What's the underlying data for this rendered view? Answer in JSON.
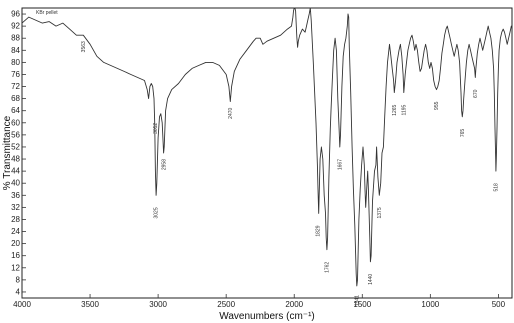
{
  "chart_data": {
    "type": "line",
    "title": "",
    "xlabel": "Wavenumbers (cm⁻¹)",
    "ylabel": "% Transmittance",
    "xlim": [
      4000,
      400
    ],
    "ylim": [
      2,
      98
    ],
    "x_ticks": [
      {
        "value": 4000,
        "label": "4000"
      },
      {
        "value": 3500,
        "label": "3500"
      },
      {
        "value": 3000,
        "label": "3000"
      },
      {
        "value": 2500,
        "label": "2500"
      },
      {
        "value": 2000,
        "label": "2000"
      },
      {
        "value": 1500,
        "label": "1500"
      },
      {
        "value": 1000,
        "label": "1000"
      },
      {
        "value": 500,
        "label": "500"
      }
    ],
    "y_ticks": [
      {
        "value": 96,
        "label": "96"
      },
      {
        "value": 92,
        "label": "92"
      },
      {
        "value": 88,
        "label": "88"
      },
      {
        "value": 84,
        "label": "84"
      },
      {
        "value": 80,
        "label": "80"
      },
      {
        "value": 76,
        "label": "76"
      },
      {
        "value": 72,
        "label": "72"
      },
      {
        "value": 68,
        "label": "68"
      },
      {
        "value": 64,
        "label": "64"
      },
      {
        "value": 60,
        "label": "60"
      },
      {
        "value": 56,
        "label": "56"
      },
      {
        "value": 52,
        "label": "52"
      },
      {
        "value": 48,
        "label": "48"
      },
      {
        "value": 44,
        "label": "44"
      },
      {
        "value": 40,
        "label": "40"
      },
      {
        "value": 36,
        "label": "36"
      },
      {
        "value": 32,
        "label": "32"
      },
      {
        "value": 28,
        "label": "28"
      },
      {
        "value": 24,
        "label": "24"
      },
      {
        "value": 20,
        "label": "20"
      },
      {
        "value": 16,
        "label": "16"
      },
      {
        "value": 12,
        "label": "12"
      },
      {
        "value": 8,
        "label": "8"
      },
      {
        "value": 4,
        "label": "4"
      }
    ],
    "legend": {
      "text": "KBr pellet",
      "placement": "top-left"
    },
    "series": [
      {
        "points": [
          [
            4000,
            93
          ],
          [
            3950,
            95
          ],
          [
            3900,
            94
          ],
          [
            3850,
            93
          ],
          [
            3800,
            93.5
          ],
          [
            3750,
            92
          ],
          [
            3700,
            93
          ],
          [
            3650,
            91
          ],
          [
            3600,
            89
          ],
          [
            3550,
            89
          ],
          [
            3500,
            86
          ],
          [
            3450,
            82
          ],
          [
            3400,
            80
          ],
          [
            3350,
            79
          ],
          [
            3300,
            78
          ],
          [
            3250,
            77
          ],
          [
            3200,
            76
          ],
          [
            3150,
            75
          ],
          [
            3100,
            74
          ],
          [
            3080,
            71
          ],
          [
            3070,
            68
          ],
          [
            3060,
            72
          ],
          [
            3050,
            73
          ],
          [
            3040,
            72
          ],
          [
            3030,
            68
          ],
          [
            3025,
            60
          ],
          [
            3020,
            44
          ],
          [
            3015,
            36
          ],
          [
            3010,
            40
          ],
          [
            3000,
            55
          ],
          [
            2990,
            62
          ],
          [
            2980,
            63
          ],
          [
            2970,
            60
          ],
          [
            2960,
            50
          ],
          [
            2955,
            52
          ],
          [
            2945,
            64
          ],
          [
            2930,
            68
          ],
          [
            2900,
            71
          ],
          [
            2850,
            73
          ],
          [
            2800,
            76
          ],
          [
            2750,
            78
          ],
          [
            2700,
            79
          ],
          [
            2650,
            80
          ],
          [
            2600,
            80
          ],
          [
            2550,
            79
          ],
          [
            2500,
            76
          ],
          [
            2480,
            72
          ],
          [
            2470,
            67
          ],
          [
            2460,
            72
          ],
          [
            2440,
            77
          ],
          [
            2400,
            81
          ],
          [
            2350,
            84
          ],
          [
            2300,
            87
          ],
          [
            2280,
            88
          ],
          [
            2250,
            88
          ],
          [
            2230,
            86
          ],
          [
            2200,
            87
          ],
          [
            2150,
            88
          ],
          [
            2100,
            89
          ],
          [
            2050,
            91
          ],
          [
            2020,
            92
          ],
          [
            2010,
            95
          ],
          [
            2005,
            97
          ],
          [
            2000,
            98
          ],
          [
            1995,
            98
          ],
          [
            1990,
            97
          ],
          [
            1985,
            92
          ],
          [
            1980,
            88
          ],
          [
            1975,
            85
          ],
          [
            1970,
            87
          ],
          [
            1960,
            89
          ],
          [
            1950,
            90
          ],
          [
            1940,
            91
          ],
          [
            1920,
            90
          ],
          [
            1910,
            92
          ],
          [
            1900,
            94
          ],
          [
            1890,
            96
          ],
          [
            1882,
            98
          ],
          [
            1875,
            94
          ],
          [
            1860,
            80
          ],
          [
            1840,
            60
          ],
          [
            1830,
            46
          ],
          [
            1825,
            38
          ],
          [
            1820,
            30
          ],
          [
            1810,
            48
          ],
          [
            1800,
            52
          ],
          [
            1790,
            48
          ],
          [
            1780,
            36
          ],
          [
            1770,
            30
          ],
          [
            1765,
            22
          ],
          [
            1760,
            18
          ],
          [
            1755,
            22
          ],
          [
            1745,
            42
          ],
          [
            1735,
            58
          ],
          [
            1730,
            64
          ],
          [
            1720,
            74
          ],
          [
            1710,
            84
          ],
          [
            1700,
            88
          ],
          [
            1690,
            84
          ],
          [
            1680,
            68
          ],
          [
            1670,
            58
          ],
          [
            1665,
            52
          ],
          [
            1660,
            56
          ],
          [
            1650,
            72
          ],
          [
            1640,
            82
          ],
          [
            1630,
            86
          ],
          [
            1620,
            88
          ],
          [
            1610,
            92
          ],
          [
            1605,
            96
          ],
          [
            1600,
            95
          ],
          [
            1595,
            85
          ],
          [
            1585,
            70
          ],
          [
            1575,
            52
          ],
          [
            1565,
            38
          ],
          [
            1555,
            26
          ],
          [
            1550,
            18
          ],
          [
            1545,
            10
          ],
          [
            1540,
            6
          ],
          [
            1535,
            8
          ],
          [
            1530,
            18
          ],
          [
            1525,
            28
          ],
          [
            1515,
            38
          ],
          [
            1505,
            46
          ],
          [
            1495,
            52
          ],
          [
            1485,
            46
          ],
          [
            1480,
            38
          ],
          [
            1475,
            32
          ],
          [
            1465,
            40
          ],
          [
            1460,
            44
          ],
          [
            1455,
            38
          ],
          [
            1450,
            30
          ],
          [
            1445,
            22
          ],
          [
            1440,
            14
          ],
          [
            1435,
            16
          ],
          [
            1425,
            34
          ],
          [
            1410,
            44
          ],
          [
            1400,
            46
          ],
          [
            1395,
            52
          ],
          [
            1385,
            42
          ],
          [
            1375,
            36
          ],
          [
            1365,
            40
          ],
          [
            1355,
            50
          ],
          [
            1345,
            52
          ],
          [
            1335,
            62
          ],
          [
            1325,
            72
          ],
          [
            1315,
            80
          ],
          [
            1300,
            86
          ],
          [
            1290,
            82
          ],
          [
            1280,
            78
          ],
          [
            1270,
            74
          ],
          [
            1265,
            70
          ],
          [
            1255,
            74
          ],
          [
            1245,
            80
          ],
          [
            1230,
            84
          ],
          [
            1220,
            86
          ],
          [
            1210,
            82
          ],
          [
            1200,
            76
          ],
          [
            1195,
            70
          ],
          [
            1185,
            76
          ],
          [
            1175,
            80
          ],
          [
            1165,
            84
          ],
          [
            1155,
            86
          ],
          [
            1145,
            88
          ],
          [
            1135,
            89
          ],
          [
            1125,
            87
          ],
          [
            1115,
            84
          ],
          [
            1105,
            86
          ],
          [
            1095,
            84
          ],
          [
            1085,
            80
          ],
          [
            1075,
            77
          ],
          [
            1065,
            78
          ],
          [
            1055,
            81
          ],
          [
            1045,
            84
          ],
          [
            1035,
            86
          ],
          [
            1025,
            84
          ],
          [
            1015,
            80
          ],
          [
            1005,
            78
          ],
          [
            995,
            80
          ],
          [
            985,
            78
          ],
          [
            975,
            74
          ],
          [
            965,
            72
          ],
          [
            955,
            71
          ],
          [
            945,
            72
          ],
          [
            935,
            74
          ],
          [
            925,
            78
          ],
          [
            915,
            83
          ],
          [
            905,
            86
          ],
          [
            895,
            89
          ],
          [
            885,
            91
          ],
          [
            875,
            92
          ],
          [
            865,
            90
          ],
          [
            855,
            88
          ],
          [
            845,
            86
          ],
          [
            835,
            84
          ],
          [
            825,
            82
          ],
          [
            815,
            84
          ],
          [
            805,
            86
          ],
          [
            795,
            84
          ],
          [
            785,
            80
          ],
          [
            775,
            70
          ],
          [
            770,
            64
          ],
          [
            765,
            62
          ],
          [
            760,
            64
          ],
          [
            755,
            68
          ],
          [
            745,
            74
          ],
          [
            735,
            80
          ],
          [
            725,
            84
          ],
          [
            715,
            86
          ],
          [
            705,
            84
          ],
          [
            695,
            82
          ],
          [
            685,
            80
          ],
          [
            675,
            78
          ],
          [
            670,
            75
          ],
          [
            665,
            78
          ],
          [
            655,
            83
          ],
          [
            645,
            86
          ],
          [
            635,
            88
          ],
          [
            625,
            86
          ],
          [
            615,
            84
          ],
          [
            605,
            86
          ],
          [
            595,
            88
          ],
          [
            585,
            90
          ],
          [
            575,
            92
          ],
          [
            565,
            90
          ],
          [
            555,
            88
          ],
          [
            545,
            84
          ],
          [
            535,
            78
          ],
          [
            530,
            70
          ],
          [
            525,
            58
          ],
          [
            520,
            48
          ],
          [
            518,
            44
          ],
          [
            515,
            48
          ],
          [
            510,
            58
          ],
          [
            505,
            70
          ],
          [
            500,
            78
          ],
          [
            495,
            84
          ],
          [
            485,
            88
          ],
          [
            475,
            90
          ],
          [
            465,
            91
          ],
          [
            455,
            90
          ],
          [
            445,
            88
          ],
          [
            435,
            86
          ],
          [
            425,
            88
          ],
          [
            415,
            90
          ],
          [
            405,
            92
          ],
          [
            400,
            92
          ]
        ]
      }
    ],
    "peak_labels": [
      {
        "x": 3550,
        "y": 87,
        "label": "3563"
      },
      {
        "x": 3020,
        "y": 60,
        "label": "3052"
      },
      {
        "x": 3015,
        "y": 32,
        "label": "3025"
      },
      {
        "x": 2955,
        "y": 48,
        "label": "2958"
      },
      {
        "x": 2470,
        "y": 65,
        "label": "2470"
      },
      {
        "x": 1825,
        "y": 26,
        "label": "1829"
      },
      {
        "x": 1760,
        "y": 14,
        "label": "1762"
      },
      {
        "x": 1665,
        "y": 48,
        "label": "1667"
      },
      {
        "x": 1540,
        "y": 3,
        "label": "1541"
      },
      {
        "x": 1440,
        "y": 10,
        "label": "1440"
      },
      {
        "x": 1375,
        "y": 32,
        "label": "1375"
      },
      {
        "x": 1265,
        "y": 66,
        "label": "1265"
      },
      {
        "x": 1195,
        "y": 66,
        "label": "1195"
      },
      {
        "x": 955,
        "y": 67,
        "label": "955"
      },
      {
        "x": 765,
        "y": 58,
        "label": "765"
      },
      {
        "x": 670,
        "y": 71,
        "label": "670"
      },
      {
        "x": 518,
        "y": 40,
        "label": "518"
      }
    ]
  }
}
